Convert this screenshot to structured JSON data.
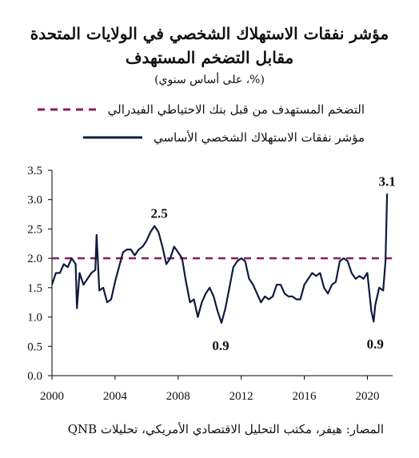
{
  "title_line1": "مؤشر نفقات الاستهلاك الشخصي في الولايات المتحدة",
  "title_line2": "مقابل التضخم المستهدف",
  "subtitle": "(%، على أساس سنوي)",
  "legend": [
    {
      "label": "التضخم المستهدف  من قبل بنك الاحتياطي الفيدرالي",
      "color": "#8c1a5c",
      "style": "dashed"
    },
    {
      "label": "مؤشر نفقات الاستهلاك الشخصي الأساسي",
      "color": "#0f1b3d",
      "style": "solid"
    }
  ],
  "source": "المصار: هيفر، مكتب التحليل الاقتصادي الأمريكي، تحليلات QNB",
  "chart_data": {
    "type": "line",
    "title": "مؤشر نفقات الاستهلاك الشخصي في الولايات المتحدة مقابل التضخم المستهدف",
    "ylabel": "",
    "xlabel": "",
    "xlim": [
      2000,
      2021.6
    ],
    "ylim": [
      0.0,
      3.5
    ],
    "xticks": [
      "2000",
      "2004",
      "2008",
      "2012",
      "2016",
      "2020"
    ],
    "yticks": [
      "0.0",
      "0.5",
      "1.0",
      "1.5",
      "2.0",
      "2.5",
      "3.0",
      "3.5"
    ],
    "grid": false,
    "legend_position": "top",
    "annotations": [
      {
        "text": "2.5",
        "x": 2006.8,
        "y": 2.5
      },
      {
        "text": "0.9",
        "x": 2010.8,
        "y": 0.9
      },
      {
        "text": "0.9",
        "x": 2020.5,
        "y": 0.9
      },
      {
        "text": "3.1",
        "x": 2021.25,
        "y": 3.1
      }
    ],
    "series": [
      {
        "name": "التضخم المستهدف  من قبل بنك الاحتياطي الفيدرالي",
        "style": "dashed",
        "x": [
          2000,
          2021.6
        ],
        "y": [
          2.0,
          2.0
        ]
      },
      {
        "name": "مؤشر نفقات الاستهلاك الشخصي الأساسي",
        "style": "solid",
        "x": [
          2000.0,
          2000.25,
          2000.5,
          2000.75,
          2001.0,
          2001.25,
          2001.5,
          2001.58,
          2001.75,
          2002.0,
          2002.25,
          2002.5,
          2002.75,
          2002.83,
          2003.0,
          2003.25,
          2003.5,
          2003.75,
          2004.0,
          2004.25,
          2004.5,
          2004.75,
          2005.0,
          2005.25,
          2005.5,
          2005.75,
          2006.0,
          2006.25,
          2006.5,
          2006.75,
          2007.0,
          2007.25,
          2007.5,
          2007.75,
          2008.0,
          2008.25,
          2008.5,
          2008.75,
          2009.0,
          2009.25,
          2009.5,
          2009.75,
          2010.0,
          2010.25,
          2010.5,
          2010.75,
          2011.0,
          2011.25,
          2011.5,
          2011.75,
          2012.0,
          2012.25,
          2012.5,
          2012.75,
          2013.0,
          2013.25,
          2013.5,
          2013.75,
          2014.0,
          2014.25,
          2014.5,
          2014.75,
          2015.0,
          2015.25,
          2015.5,
          2015.75,
          2016.0,
          2016.25,
          2016.5,
          2016.75,
          2017.0,
          2017.25,
          2017.5,
          2017.75,
          2018.0,
          2018.25,
          2018.5,
          2018.75,
          2019.0,
          2019.25,
          2019.5,
          2019.75,
          2020.0,
          2020.25,
          2020.4,
          2020.5,
          2020.75,
          2021.0,
          2021.15,
          2021.25
        ],
        "y": [
          1.55,
          1.75,
          1.75,
          1.9,
          1.85,
          2.0,
          1.9,
          1.15,
          1.75,
          1.55,
          1.65,
          1.75,
          1.8,
          2.4,
          1.45,
          1.5,
          1.25,
          1.3,
          1.6,
          1.85,
          2.1,
          2.15,
          2.15,
          2.05,
          2.15,
          2.2,
          2.3,
          2.45,
          2.55,
          2.45,
          2.2,
          1.9,
          2.0,
          2.2,
          2.1,
          2.0,
          1.6,
          1.25,
          1.3,
          1.0,
          1.25,
          1.4,
          1.5,
          1.35,
          1.1,
          0.9,
          1.15,
          1.5,
          1.85,
          1.95,
          2.0,
          1.95,
          1.65,
          1.55,
          1.4,
          1.25,
          1.35,
          1.3,
          1.35,
          1.55,
          1.55,
          1.4,
          1.35,
          1.35,
          1.3,
          1.3,
          1.55,
          1.65,
          1.75,
          1.7,
          1.75,
          1.5,
          1.4,
          1.55,
          1.6,
          1.95,
          2.0,
          1.95,
          1.75,
          1.65,
          1.7,
          1.65,
          1.75,
          1.1,
          0.92,
          1.2,
          1.5,
          1.45,
          1.95,
          3.1
        ]
      }
    ]
  }
}
